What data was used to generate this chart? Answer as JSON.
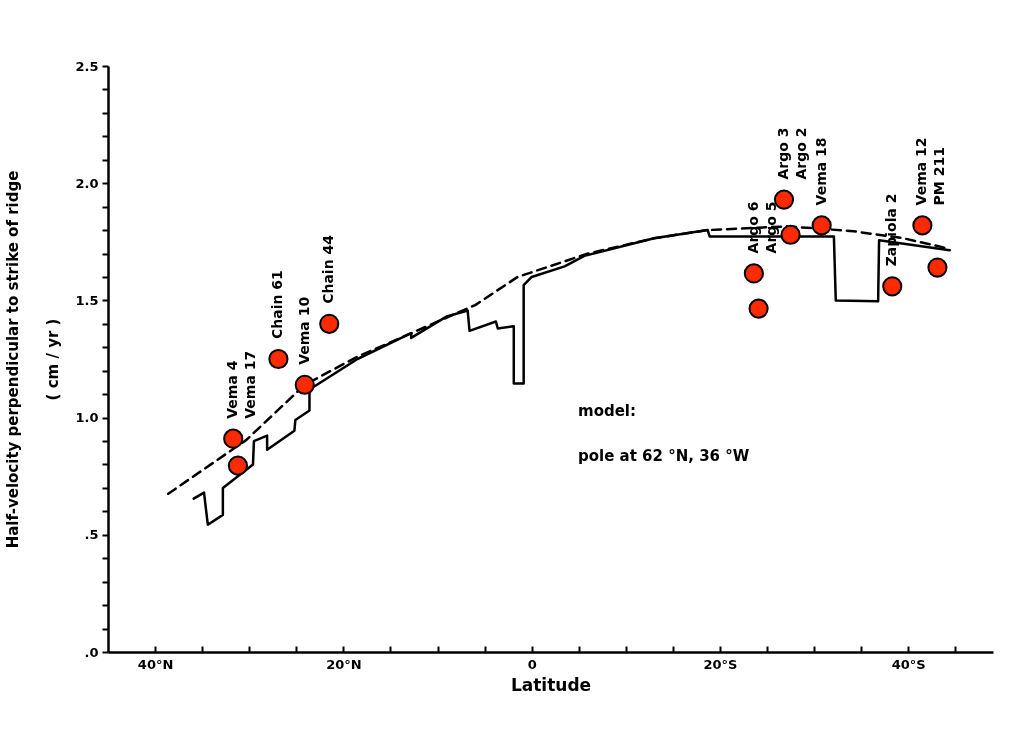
{
  "chart_data": {
    "type": "line",
    "xlabel": "Latitude",
    "ylabel": "Half-velocity  perpendicular  to  strike  of  ridge\n( cm / yr )",
    "xlim": [
      45,
      -49
    ],
    "ylim": [
      0,
      2.5
    ],
    "xticks": [
      {
        "value": 40,
        "label": "40°N"
      },
      {
        "value": 35,
        "label": null
      },
      {
        "value": 30,
        "label": null
      },
      {
        "value": 25,
        "label": null
      },
      {
        "value": 20,
        "label": "20°N"
      },
      {
        "value": 15,
        "label": null
      },
      {
        "value": 10,
        "label": null
      },
      {
        "value": 5,
        "label": null
      },
      0,
      {
        "value": -5,
        "label": null
      },
      {
        "value": -10,
        "label": null
      },
      {
        "value": -15,
        "label": null
      },
      {
        "value": -20,
        "label": "20°S"
      },
      {
        "value": -25,
        "label": null
      },
      {
        "value": -30,
        "label": null
      },
      {
        "value": -35,
        "label": null
      },
      {
        "value": -40,
        "label": "40°S"
      },
      {
        "value": -45,
        "label": null
      }
    ],
    "yticks": [
      {
        "value": 0,
        "label": ".0"
      },
      {
        "value": 0.1,
        "label": null
      },
      {
        "value": 0.2,
        "label": null
      },
      {
        "value": 0.3,
        "label": null
      },
      {
        "value": 0.4,
        "label": null
      },
      {
        "value": 0.5,
        "label": ".5"
      },
      {
        "value": 0.6,
        "label": null
      },
      {
        "value": 0.7,
        "label": null
      },
      {
        "value": 0.8,
        "label": null
      },
      {
        "value": 0.9,
        "label": null
      },
      {
        "value": 1,
        "label": "1.0"
      },
      {
        "value": 1.1,
        "label": null
      },
      {
        "value": 1.2,
        "label": null
      },
      {
        "value": 1.3,
        "label": null
      },
      {
        "value": 1.4,
        "label": null
      },
      1.5,
      {
        "value": 1.6,
        "label": null
      },
      {
        "value": 1.7,
        "label": null
      },
      {
        "value": 1.8,
        "label": null
      },
      {
        "value": 1.9,
        "label": null
      },
      {
        "value": 2,
        "label": "2.0"
      },
      {
        "value": 2.1,
        "label": null
      },
      {
        "value": 2.2,
        "label": null
      },
      {
        "value": 2.3,
        "label": null
      },
      {
        "value": 2.4,
        "label": null
      },
      2.5
    ],
    "grid": false,
    "series": [
      {
        "color": "#000000",
        "line_style": "dashed",
        "marker": "none",
        "x": [
          38.6,
          30.3,
          24.1,
          18.5,
          12.8,
          6,
          1.5,
          -6,
          -13,
          -18.7,
          -27.2,
          -34.2,
          -39.5,
          -44.4
        ],
        "values": [
          0.675,
          0.905,
          1.14,
          1.26,
          1.36,
          1.48,
          1.6,
          1.7,
          1.765,
          1.8,
          1.816,
          1.795,
          1.765,
          1.72
        ]
      },
      {
        "color": "#000000",
        "line_style": "solid",
        "marker": "none",
        "x": [
          35.9,
          34.8,
          34.4,
          32.8,
          32.8,
          29.6,
          29.5,
          28.1,
          28.1,
          25.2,
          25.1,
          23.6,
          23.6,
          18.5,
          12.8,
          12.8,
          9.1,
          6.8,
          6.6,
          3.8,
          3.6,
          1.9,
          1.9,
          0.85,
          0.85,
          0,
          -3.5,
          -5.6,
          -13,
          -18.7,
          -18.9,
          -32.1,
          -32.3,
          -36.8,
          -36.9,
          -44.4
        ],
        "values": [
          0.654,
          0.68,
          0.543,
          0.585,
          0.7,
          0.8,
          0.9,
          0.923,
          0.863,
          0.944,
          0.99,
          1.03,
          1.12,
          1.25,
          1.36,
          1.34,
          1.43,
          1.457,
          1.37,
          1.41,
          1.38,
          1.39,
          1.145,
          1.145,
          1.565,
          1.6,
          1.645,
          1.69,
          1.765,
          1.8,
          1.773,
          1.773,
          1.5,
          1.496,
          1.757,
          1.714
        ]
      },
      {
        "type": "scatter",
        "color": "#ff2a00",
        "marker": "circle",
        "x": [
          31.7,
          31.2,
          26.9,
          24.1,
          21.5,
          -23.6,
          -24.1,
          -26.8,
          -27.5,
          -30.8,
          -38.3,
          -41.5,
          -43.1
        ],
        "values": [
          0.91,
          0.795,
          1.25,
          1.14,
          1.4,
          1.615,
          1.465,
          1.93,
          1.78,
          1.82,
          1.56,
          1.82,
          1.64
        ]
      }
    ],
    "annotations": [
      {
        "text": "Vema 4",
        "x": 31.7,
        "y": 0.91
      },
      "Vema 17",
      {
        "text": "Chain 61",
        "x": 26.9,
        "y": 1.25
      },
      {
        "text": "Vema 10",
        "x": 24.1,
        "y": 1.14
      },
      {
        "text": "Chain 44",
        "x": 21.5,
        "y": 1.4
      },
      {
        "text": "Argo 6",
        "x": -23.6,
        "y": 1.615
      },
      "Argo 5",
      {
        "text": "Argo 3",
        "x": -26.8,
        "y": 1.93
      },
      "Argo 2",
      {
        "text": "Vema 18",
        "x": -30.8,
        "y": 1.82
      },
      {
        "text": "Zapiola 2",
        "x": -38.3,
        "y": 1.56
      },
      {
        "text": "Vema 12",
        "x": -41.5,
        "y": 1.82
      },
      "PM 211",
      "model:",
      "pole at 62 °N, 36 °W"
    ]
  }
}
